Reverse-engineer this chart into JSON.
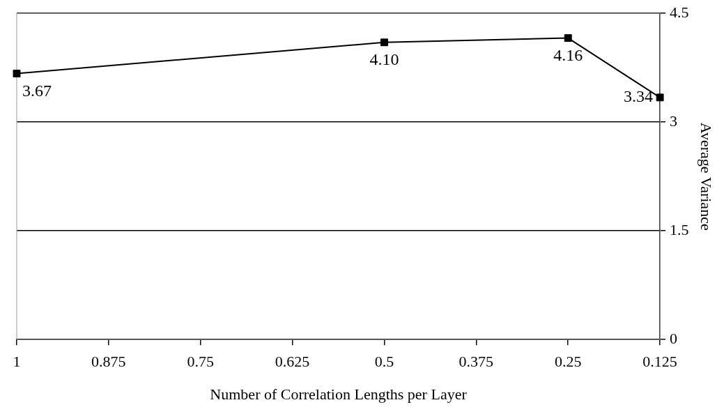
{
  "chart_data": {
    "type": "line",
    "xlabel": "Number of Correlation Lengths per Layer",
    "ylabel": "Average Variance",
    "x": [
      1,
      0.5,
      0.25,
      0.125
    ],
    "series": [
      {
        "color": "#000000",
        "values": [
          3.67,
          4.1,
          4.16,
          3.34
        ],
        "value_labels": [
          "3.67",
          "4.10",
          "4.16",
          "3.34"
        ]
      }
    ],
    "xlim": [
      1,
      0.125
    ],
    "xticks": [
      1,
      0.875,
      0.75,
      0.625,
      0.5,
      0.375,
      0.25,
      0.125
    ],
    "ylim": [
      0,
      4.5
    ],
    "yticks": [
      0,
      1.5,
      3,
      4.5
    ],
    "grid": "y",
    "legend": false,
    "marker": "square",
    "line_style": "solid"
  }
}
